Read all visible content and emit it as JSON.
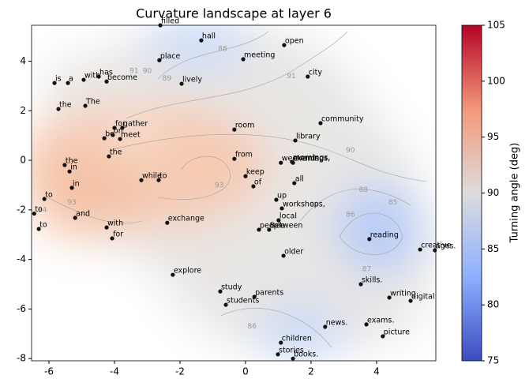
{
  "chart_data": {
    "type": "scatter",
    "title": "Curvature landscape at layer 6",
    "color": "#111111",
    "labels": [
      "filled",
      "hall",
      "open",
      "place",
      "meeting",
      "city",
      "is",
      "a",
      "with",
      "has",
      "become",
      "lively",
      "the",
      "The",
      "community",
      "for",
      "gather",
      "room",
      "be",
      "on",
      "meet",
      "library",
      "the",
      "from",
      "weekends,",
      "mornings,",
      "evenings,",
      "the",
      "in",
      "while",
      "to",
      "keep",
      "of",
      "all",
      "in",
      "to",
      "up",
      "workshops,",
      "to",
      "and",
      "local",
      "exchange",
      "to",
      "with",
      "Between",
      "people",
      "reading",
      "for",
      "creative",
      "ages.",
      "older",
      "explore",
      "skills.",
      "study",
      "parents",
      "writing",
      "digital",
      "students",
      "news.",
      "exams.",
      "picture",
      "children",
      "stories",
      "books."
    ],
    "x": [
      -2.6,
      -1.35,
      1.18,
      -2.63,
      -0.07,
      1.9,
      -5.83,
      -5.42,
      -4.94,
      -4.48,
      -4.24,
      -1.95,
      -5.71,
      -4.89,
      2.29,
      -4.0,
      -3.76,
      -0.34,
      -4.31,
      -4.05,
      -3.83,
      1.52,
      -4.17,
      -0.34,
      1.08,
      1.42,
      1.45,
      -5.52,
      -5.37,
      -3.18,
      -2.65,
      0.0,
      0.24,
      1.49,
      -5.3,
      -6.14,
      0.94,
      1.11,
      -6.45,
      -5.2,
      1.01,
      -2.39,
      -6.31,
      -4.24,
      0.72,
      0.41,
      3.78,
      -4.07,
      5.33,
      5.78,
      1.16,
      -2.22,
      3.52,
      -0.77,
      0.27,
      4.39,
      5.04,
      -0.6,
      2.43,
      3.69,
      4.19,
      1.08,
      0.99,
      1.45
    ],
    "values": [
      5.45,
      4.84,
      4.65,
      4.04,
      4.08,
      3.38,
      3.12,
      3.12,
      3.25,
      3.38,
      3.18,
      3.09,
      2.07,
      2.2,
      1.5,
      1.31,
      1.31,
      1.24,
      0.89,
      1.02,
      0.86,
      0.8,
      0.16,
      0.06,
      -0.1,
      -0.06,
      -0.1,
      -0.19,
      -0.45,
      -0.8,
      -0.8,
      -0.64,
      -1.05,
      -0.92,
      -1.11,
      -1.56,
      -1.59,
      -1.94,
      -2.15,
      -2.32,
      -2.42,
      -2.52,
      -2.77,
      -2.71,
      -2.8,
      -2.8,
      -3.18,
      -3.15,
      -3.6,
      -3.63,
      -3.85,
      -4.62,
      -5.0,
      -5.29,
      -5.51,
      -5.54,
      -5.67,
      -5.83,
      -6.72,
      -6.62,
      -7.1,
      -7.36,
      -7.83,
      -8.0
    ],
    "xlim": [
      -6.53,
      5.81
    ],
    "ylim": [
      -8.09,
      5.45
    ],
    "xticks": [
      -6,
      -4,
      -2,
      0,
      2,
      4
    ],
    "yticks": [
      -8,
      -6,
      -4,
      -2,
      0,
      2,
      4
    ],
    "contour_labels": [
      {
        "x": -0.7,
        "y": 4.5,
        "value": 88
      },
      {
        "x": -2.4,
        "y": 3.3,
        "value": 89
      },
      {
        "x": -3.0,
        "y": 3.6,
        "value": 90
      },
      {
        "x": -3.4,
        "y": 3.6,
        "value": 91
      },
      {
        "x": 1.4,
        "y": 3.4,
        "value": 91
      },
      {
        "x": 3.2,
        "y": 0.4,
        "value": 90
      },
      {
        "x": -0.8,
        "y": -1.0,
        "value": 93
      },
      {
        "x": -5.3,
        "y": -1.7,
        "value": 93
      },
      {
        "x": -6.2,
        "y": -2.0,
        "value": 94
      },
      {
        "x": 2.1,
        "y": -1.8,
        "value": 89
      },
      {
        "x": 3.6,
        "y": -1.2,
        "value": 88
      },
      {
        "x": 3.2,
        "y": -2.2,
        "value": 86
      },
      {
        "x": 4.5,
        "y": -1.7,
        "value": 85
      },
      {
        "x": 3.7,
        "y": -4.4,
        "value": 87
      },
      {
        "x": 0.2,
        "y": -6.7,
        "value": 86
      }
    ],
    "colorbar": {
      "label": "Turning angle (deg)",
      "lim": [
        75,
        105
      ],
      "ticks": [
        75,
        80,
        85,
        90,
        95,
        100,
        105
      ]
    }
  }
}
